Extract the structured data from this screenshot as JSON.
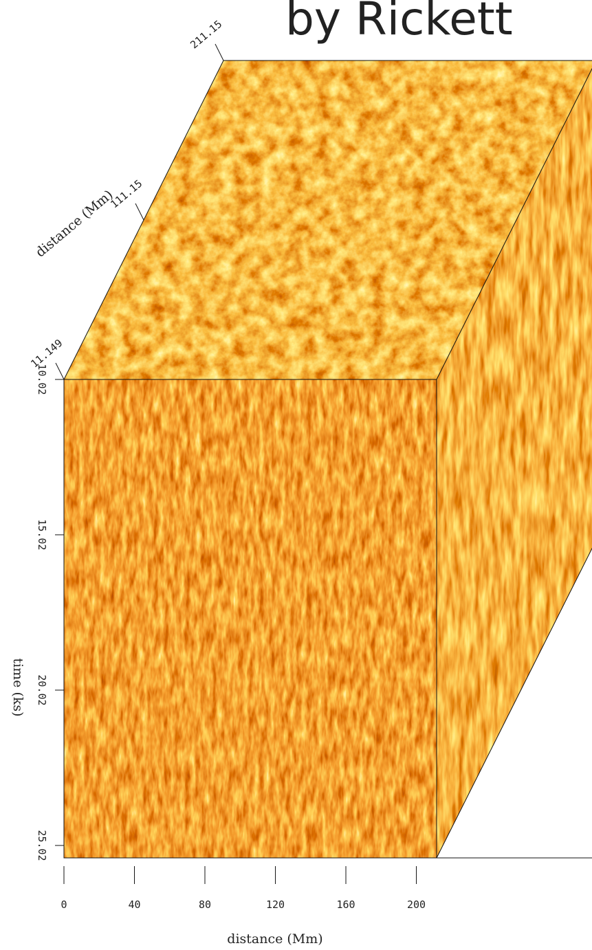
{
  "chart_data": {
    "type": "cube",
    "title": "by Rickett",
    "xlabel": "distance (Mm)",
    "ylabel": "time (ks)",
    "zlabel": "distance (Mm)",
    "xlim": [
      0,
      211.5
    ],
    "xticks": [
      0,
      40,
      80,
      120,
      160,
      200
    ],
    "ylim": [
      10.02,
      25.42
    ],
    "yticks": [
      10.02,
      15.02,
      20.02,
      25.02
    ],
    "zlim": [
      11.149,
      211.15
    ],
    "zticks": [
      11.149,
      111.15,
      211.15
    ]
  }
}
